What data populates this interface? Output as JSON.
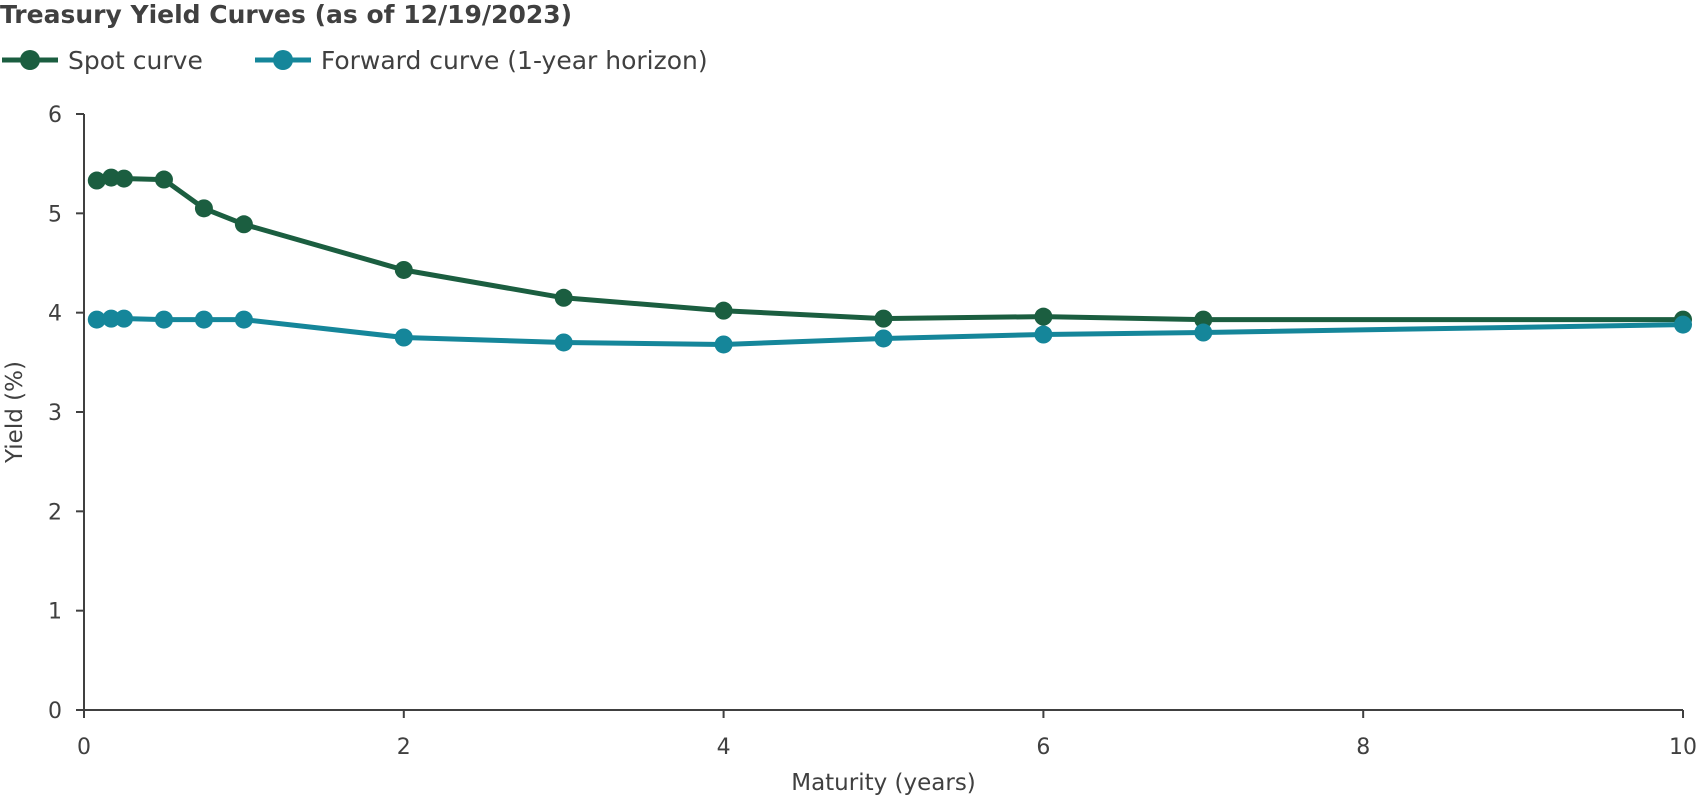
{
  "chart_data": {
    "type": "line",
    "title": "Treasury Yield Curves (as of 12/19/2023)",
    "xlabel": "Maturity (years)",
    "ylabel": "Yield (%)",
    "xlim": [
      0,
      10
    ],
    "ylim": [
      0,
      6
    ],
    "xticks": [
      0,
      2,
      4,
      6,
      8,
      10
    ],
    "yticks": [
      0,
      1,
      2,
      3,
      4,
      5,
      6
    ],
    "grid": false,
    "legend_position": "top-left",
    "series": [
      {
        "name": "Spot curve",
        "color": "#1b5e40",
        "x": [
          0.08,
          0.17,
          0.25,
          0.5,
          0.75,
          1,
          2,
          3,
          4,
          5,
          6,
          7,
          10
        ],
        "y": [
          5.33,
          5.36,
          5.35,
          5.34,
          5.05,
          4.89,
          4.43,
          4.15,
          4.02,
          3.94,
          3.96,
          3.93,
          3.93
        ]
      },
      {
        "name": "Forward curve (1-year horizon)",
        "color": "#15869a",
        "x": [
          0.08,
          0.17,
          0.25,
          0.5,
          0.75,
          1,
          2,
          3,
          4,
          5,
          6,
          7,
          10
        ],
        "y": [
          3.93,
          3.94,
          3.94,
          3.93,
          3.93,
          3.93,
          3.75,
          3.7,
          3.68,
          3.74,
          3.78,
          3.8,
          3.88
        ]
      }
    ]
  }
}
